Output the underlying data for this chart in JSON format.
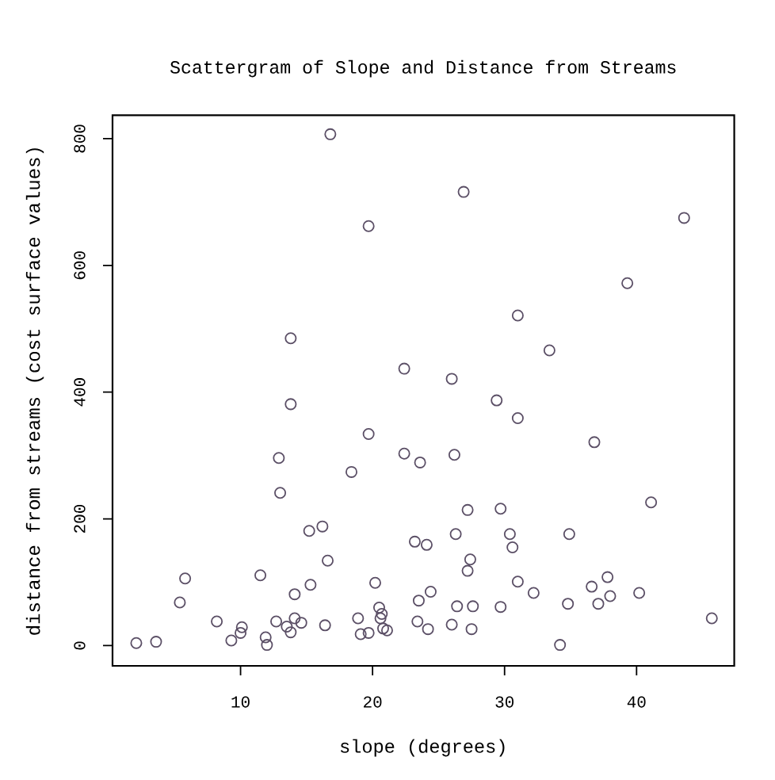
{
  "chart_data": {
    "type": "scatter",
    "title": "Scattergram of Slope and Distance from Streams",
    "xlabel": "slope (degrees)",
    "ylabel": "distance from streams (cost surface values)",
    "x": [
      16.8,
      19.7,
      13.8,
      22.4,
      26.9,
      43.6,
      39.3,
      31.0,
      33.4,
      26.0,
      13.8,
      19.7,
      12.9,
      22.4,
      23.6,
      18.4,
      13.0,
      15.2,
      16.2,
      23.2,
      24.1,
      16.6,
      5.8,
      11.5,
      5.4,
      15.3,
      14.1,
      20.2,
      23.5,
      24.4,
      20.5,
      20.7,
      20.6,
      8.2,
      10.1,
      10.0,
      9.3,
      11.9,
      12.0,
      12.7,
      13.5,
      13.8,
      14.1,
      14.6,
      16.4,
      18.9,
      19.1,
      19.7,
      20.8,
      21.1,
      23.4,
      2.1,
      3.6,
      29.4,
      31.0,
      36.8,
      26.2,
      41.1,
      27.2,
      29.7,
      26.3,
      30.4,
      30.6,
      34.9,
      27.4,
      27.2,
      31.0,
      32.2,
      36.6,
      37.8,
      38.0,
      37.1,
      40.2,
      34.8,
      26.4,
      27.6,
      29.7,
      24.2,
      26.0,
      27.5,
      34.2,
      45.7
    ],
    "values": [
      807,
      662,
      485,
      437,
      716,
      675,
      572,
      521,
      466,
      421,
      381,
      334,
      296,
      303,
      289,
      274,
      241,
      181,
      188,
      164,
      159,
      134,
      106,
      111,
      68,
      96,
      81,
      99,
      71,
      85,
      60,
      50,
      43,
      38,
      29,
      20,
      8,
      13,
      1,
      38,
      30,
      21,
      43,
      36,
      32,
      43,
      18,
      20,
      27,
      24,
      38,
      4,
      6,
      387,
      359,
      321,
      301,
      226,
      214,
      216,
      176,
      176,
      155,
      176,
      136,
      118,
      101,
      83,
      93,
      108,
      78,
      66,
      83,
      66,
      62,
      62,
      61,
      26,
      33,
      26,
      1,
      43
    ],
    "color": "#5b4f66",
    "marker": "circle",
    "xlim": [
      0.3,
      47.4
    ],
    "ylim": [
      -32,
      837
    ],
    "xticks": [
      10,
      20,
      30,
      40
    ],
    "yticks": [
      0,
      200,
      400,
      600,
      800
    ]
  }
}
